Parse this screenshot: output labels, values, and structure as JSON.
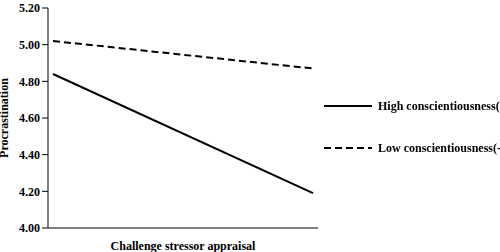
{
  "chart_data": {
    "type": "line",
    "x_label": "Challenge stressor appraisal",
    "y_label": "Procrastination",
    "categories": [
      null,
      null
    ],
    "series": [
      {
        "name": "High conscientiousness(+SD)",
        "color": "#000000",
        "line_style": "solid",
        "values": [
          4.84,
          4.19
        ]
      },
      {
        "name": "Low conscientiousness(-SD)",
        "color": "#000000",
        "line_style": "dashed",
        "values": [
          5.02,
          4.87
        ]
      }
    ],
    "ylim": [
      4.0,
      5.2
    ],
    "yticks": [
      {
        "value": 4.0,
        "label": "4.00"
      },
      {
        "value": 4.2,
        "label": "4.20"
      },
      {
        "value": 4.4,
        "label": "4.40"
      },
      {
        "value": 4.6,
        "label": "4.60"
      },
      {
        "value": 4.8,
        "label": "4.80"
      },
      {
        "value": 5.0,
        "label": "5.00"
      },
      {
        "value": 5.2,
        "label": "5.20"
      }
    ],
    "grid": false,
    "legend": "right",
    "tick_labels": "y"
  }
}
